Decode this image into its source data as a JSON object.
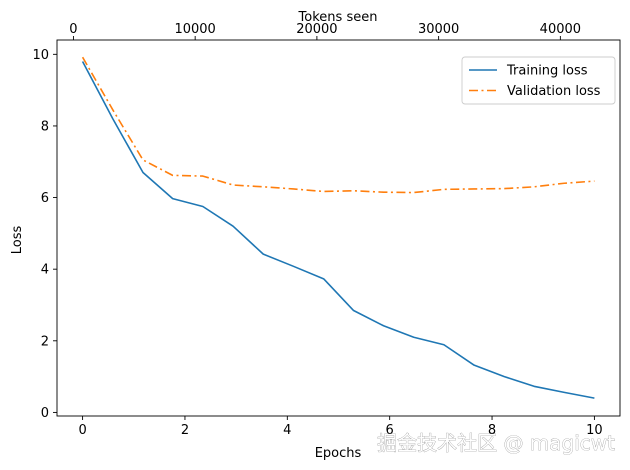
{
  "chart_data": {
    "type": "line",
    "xlabel": "Epochs",
    "ylabel": "Loss",
    "x2label": "Tokens seen",
    "xlim": [
      -0.5,
      10.5
    ],
    "ylim": [
      -0.1,
      10.4
    ],
    "x2lim": [
      -1350,
      44900
    ],
    "x_ticks": [
      0,
      2,
      4,
      6,
      8,
      10
    ],
    "x_tick_labels": [
      "0",
      "2",
      "4",
      "6",
      "8",
      "10"
    ],
    "y_ticks": [
      0,
      2,
      4,
      6,
      8,
      10
    ],
    "y_tick_labels": [
      "0",
      "2",
      "4",
      "6",
      "8",
      "10"
    ],
    "x2_ticks": [
      0,
      10000,
      20000,
      30000,
      40000
    ],
    "x2_tick_labels": [
      "0",
      "10000",
      "20000",
      "30000",
      "40000"
    ],
    "legend_position": "top-right",
    "grid": false,
    "x": [
      0,
      0.59,
      1.18,
      1.76,
      2.35,
      2.94,
      3.53,
      4.12,
      4.71,
      5.29,
      5.88,
      6.47,
      7.06,
      7.65,
      8.24,
      8.82,
      9.41,
      10.0
    ],
    "series": [
      {
        "name": "Training loss",
        "color": "#1f77b4",
        "style": "solid",
        "values": [
          9.8,
          8.2,
          6.7,
          5.97,
          5.75,
          5.2,
          4.42,
          4.08,
          3.73,
          2.85,
          2.42,
          2.1,
          1.89,
          1.32,
          1.0,
          0.73,
          0.56,
          0.4
        ]
      },
      {
        "name": "Validation loss",
        "color": "#ff7f0e",
        "style": "dashdot",
        "values": [
          9.92,
          8.45,
          7.05,
          6.62,
          6.6,
          6.35,
          6.3,
          6.24,
          6.17,
          6.19,
          6.15,
          6.14,
          6.23,
          6.24,
          6.25,
          6.3,
          6.4,
          6.46
        ]
      }
    ]
  },
  "watermark": "掘金技术社区 @ magicwt"
}
